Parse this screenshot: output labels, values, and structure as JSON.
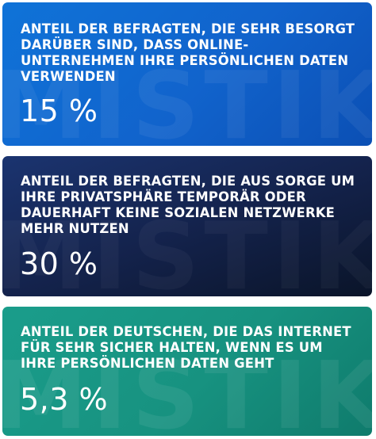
{
  "cards": [
    {
      "label": "ANTEIL DER BEFRAGTEN, DIE SEHR BESORGT DARÜBER SIND, DASS ONLINE-UNTERNEHMEN IHRE PERSÖNLICHEN DATEN VERWENDEN",
      "value": "15 %",
      "watermark": "MISTIK",
      "color": "#1163cc"
    },
    {
      "label": "ANTEIL DER BEFRAGTEN, DIE AUS SORGE UM IHRE PRIVATSPHÄRE TEMPORÄR ODER DAUERHAFT KEINE SOZIALEN NETZWERKE MEHR NUTZEN",
      "value": "30 %",
      "watermark": "MISTIK",
      "color": "#14234d"
    },
    {
      "label": "ANTEIL DER DEUTSCHEN, DIE DAS INTERNET FÜR SEHR SICHER HALTEN, WENN ES UM IHRE PERSÖNLICHEN DATEN GEHT",
      "value": "5,3 %",
      "watermark": "MISTIK",
      "color": "#179280"
    }
  ]
}
